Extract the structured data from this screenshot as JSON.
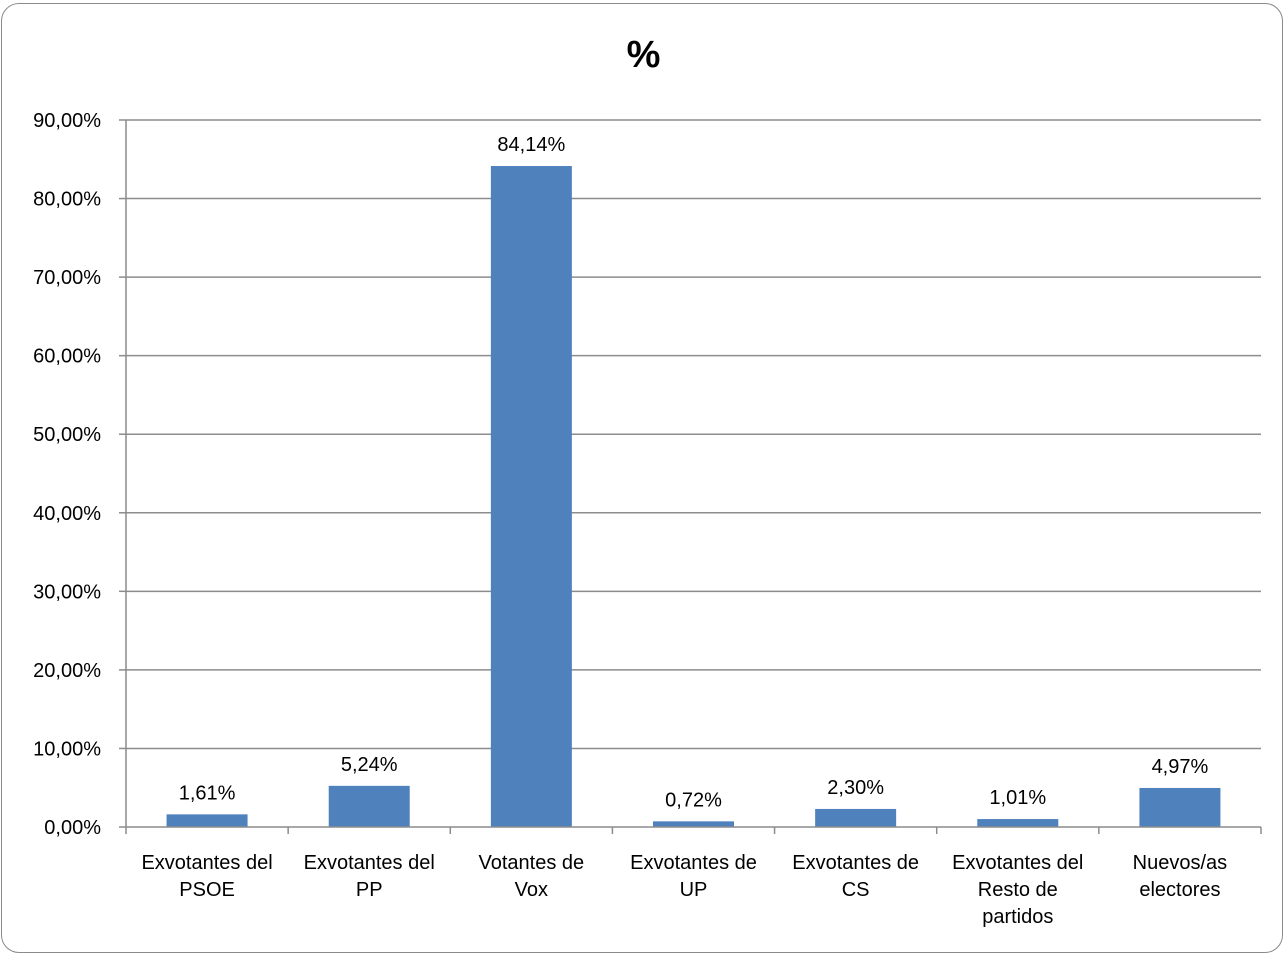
{
  "chart_data": {
    "type": "bar",
    "title": "%",
    "categories": [
      [
        "Exvotantes del",
        "PSOE"
      ],
      [
        "Exvotantes del",
        "PP"
      ],
      [
        "Votantes de",
        "Vox"
      ],
      [
        "Exvotantes de",
        "UP"
      ],
      [
        "Exvotantes de",
        "CS"
      ],
      [
        "Exvotantes del",
        "Resto de",
        "partidos"
      ],
      [
        "Nuevos/as",
        "electores"
      ]
    ],
    "values": [
      1.61,
      5.24,
      84.14,
      0.72,
      2.3,
      1.01,
      4.97
    ],
    "data_labels": [
      "1,61%",
      "5,24%",
      "84,14%",
      "0,72%",
      "2,30%",
      "1,01%",
      "4,97%"
    ],
    "ylim": [
      0,
      90
    ],
    "yticks": [
      0,
      10,
      20,
      30,
      40,
      50,
      60,
      70,
      80,
      90
    ],
    "ytick_labels": [
      "0,00%",
      "10,00%",
      "20,00%",
      "30,00%",
      "40,00%",
      "50,00%",
      "60,00%",
      "70,00%",
      "80,00%",
      "90,00%"
    ],
    "grid": true,
    "legend": "none",
    "bar_color": "#4f81bd",
    "grid_color": "#8c8c8c"
  }
}
